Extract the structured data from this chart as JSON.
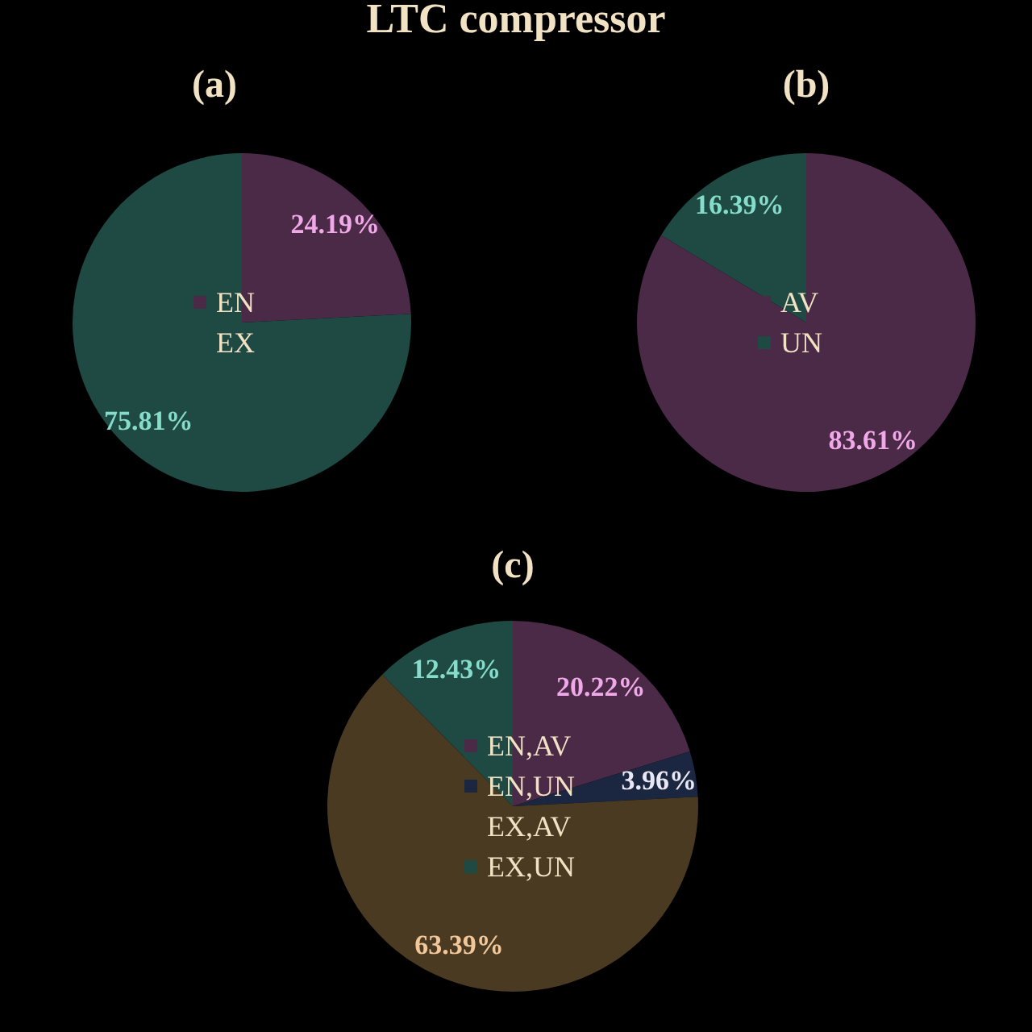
{
  "chart_data": [
    {
      "type": "pie",
      "title": "LTC compressor",
      "subtitle": "(a)",
      "categories": [
        "EN",
        "EX"
      ],
      "values": [
        24.19,
        75.81
      ],
      "value_labels": [
        "24.19%",
        "75.81%"
      ],
      "colors": [
        "#4a2a46",
        "#1f4a44"
      ],
      "legend": "center"
    },
    {
      "type": "pie",
      "title": "(b)",
      "categories": [
        "AV",
        "UN"
      ],
      "values": [
        83.61,
        16.39
      ],
      "value_labels": [
        "83.61%",
        "16.39%"
      ],
      "colors": [
        "#4a2a46",
        "#1f4a44"
      ],
      "legend": "center"
    },
    {
      "type": "pie",
      "title": "(c)",
      "categories": [
        "EN,AV",
        "EN,UN",
        "EX,AV",
        "EX,UN"
      ],
      "values": [
        20.22,
        3.96,
        63.39,
        12.43
      ],
      "value_labels": [
        "20.22%",
        "3.96%",
        "63.39%",
        "12.43%"
      ],
      "colors": [
        "#4a2a46",
        "#1b2640",
        "#4a3a22",
        "#1f4a44"
      ],
      "legend": "center"
    }
  ]
}
